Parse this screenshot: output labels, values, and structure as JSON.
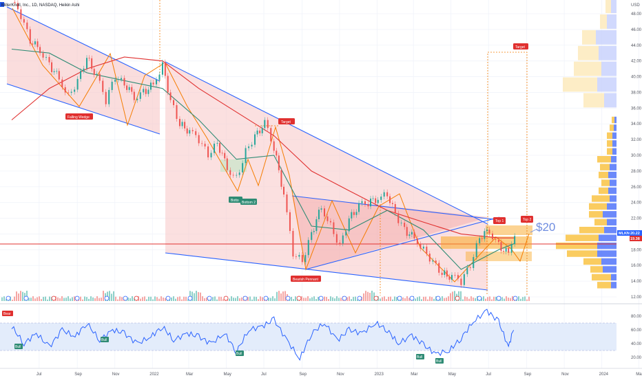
{
  "symbol_title": "MillerKnoll, Inc., 1D, NASDAQ, Heikin Ashi",
  "currency": "USD",
  "ticker_tag": "MLKN",
  "last_price": "20.22",
  "second_price": "19.38",
  "price_callout": "$20",
  "pattern_labels": {
    "falling_wedge": "Falling Wedge",
    "target1": "Target",
    "bottom1": "Botto",
    "bottom2": "Bottom 2",
    "bearish_pennant": "Bearish Pennant",
    "target2": "Target",
    "top1": "Top 1",
    "top2": "Top 2"
  },
  "rsi_marker_labels": {
    "bear": "Bear",
    "bull": "Bull"
  },
  "colors": {
    "candle_up": "#26a69a",
    "candle_down": "#ef5350",
    "ma_green": "#2e8b74",
    "ma_red": "#e0302f",
    "trend_blue": "#2962ff",
    "pattern_fill": "#f7c7c7",
    "orange": "#f57c00",
    "vp_blue": "#5b7cfa",
    "vp_yellow": "#f9c74f",
    "rsi_line": "#2962ff",
    "rsi_band": "#e3ecfb"
  },
  "chart_data": [
    {
      "type": "line",
      "title": "MillerKnoll, Inc., 1D, NASDAQ, Heikin Ashi",
      "ylabel": "USD",
      "ylim": [
        11,
        50
      ],
      "x_tick_labels": [
        "Jul",
        "Sep",
        "Nov",
        "2022",
        "Mar",
        "May",
        "Jul",
        "Sep",
        "Nov",
        "2023",
        "Mar",
        "May",
        "Jul",
        "Sep",
        "Nov",
        "2024",
        "Mar"
      ],
      "y_tick_labels": [
        "12.00",
        "14.00",
        "16.00",
        "18.00",
        "20.00",
        "22.00",
        "24.00",
        "26.00",
        "28.00",
        "30.00",
        "32.00",
        "34.00",
        "36.00",
        "38.00",
        "40.00",
        "42.00",
        "44.00",
        "46.00",
        "48.00"
      ],
      "grid": true,
      "series": [
        {
          "name": "Heikin Ashi close",
          "x": [
            "2021-06-20",
            "2021-07-05",
            "2021-07-20",
            "2021-08-05",
            "2021-08-20",
            "2021-09-05",
            "2021-09-20",
            "2021-10-05",
            "2021-10-20",
            "2021-11-05",
            "2021-11-20",
            "2021-12-05",
            "2021-12-20",
            "2022-01-05",
            "2022-01-20",
            "2022-02-05",
            "2022-02-20",
            "2022-03-05",
            "2022-03-20",
            "2022-04-05",
            "2022-04-20",
            "2022-05-05",
            "2022-05-20",
            "2022-06-05",
            "2022-06-20",
            "2022-07-05",
            "2022-07-20",
            "2022-08-05",
            "2022-08-20",
            "2022-09-05",
            "2022-09-20",
            "2022-10-05",
            "2022-10-20",
            "2022-11-05",
            "2022-11-20",
            "2022-12-05",
            "2022-12-20",
            "2023-01-05",
            "2023-01-20",
            "2023-02-05",
            "2023-02-20",
            "2023-03-05",
            "2023-03-20",
            "2023-04-05",
            "2023-04-20",
            "2023-05-05",
            "2023-05-20",
            "2023-06-05",
            "2023-06-20",
            "2023-07-05",
            "2023-07-20",
            "2023-08-05",
            "2023-08-20",
            "2023-09-05",
            "2023-09-15"
          ],
          "values": [
            49.5,
            47.8,
            44.5,
            43.5,
            41.5,
            39.8,
            37.5,
            39.5,
            42.5,
            40.0,
            37.0,
            40.0,
            39.0,
            37.5,
            38.0,
            39.0,
            41.5,
            37.0,
            34.0,
            33.0,
            32.0,
            30.0,
            31.5,
            28.5,
            27.0,
            30.5,
            32.5,
            34.0,
            31.0,
            25.0,
            17.5,
            16.5,
            20.0,
            23.5,
            21.0,
            18.5,
            22.0,
            23.5,
            24.0,
            24.5,
            25.0,
            22.5,
            20.5,
            19.5,
            18.0,
            16.5,
            15.0,
            14.5,
            14.0,
            16.0,
            19.5,
            20.5,
            18.5,
            17.5,
            20.2
          ]
        },
        {
          "name": "Moving average (green)",
          "x": [
            "2021-06-20",
            "2021-08-20",
            "2021-10-20",
            "2021-12-20",
            "2022-02-20",
            "2022-04-20",
            "2022-06-20",
            "2022-08-20",
            "2022-10-20",
            "2022-12-20",
            "2023-02-20",
            "2023-04-20",
            "2023-06-20",
            "2023-08-20",
            "2023-09-15"
          ],
          "values": [
            43.5,
            43.0,
            40.5,
            39.5,
            38.5,
            34.5,
            29.5,
            30.0,
            21.0,
            20.5,
            23.0,
            20.5,
            15.5,
            18.0,
            18.8
          ]
        },
        {
          "name": "Moving average (red)",
          "x": [
            "2021-06-20",
            "2021-08-20",
            "2021-10-20",
            "2021-12-20",
            "2022-02-20",
            "2022-04-20",
            "2022-06-20",
            "2022-08-20",
            "2022-10-20",
            "2022-12-20",
            "2023-02-20",
            "2023-04-20",
            "2023-06-20",
            "2023-08-20",
            "2023-09-15"
          ],
          "values": [
            34.5,
            38.5,
            41.0,
            42.5,
            42.0,
            38.5,
            35.5,
            32.5,
            28.0,
            25.5,
            23.0,
            21.5,
            20.0,
            19.5,
            19.5
          ]
        }
      ]
    },
    {
      "type": "line",
      "title": "RSI",
      "ylim": [
        10,
        90
      ],
      "y_tick_labels": [
        "20.00",
        "40.00",
        "60.00",
        "80.00"
      ],
      "grid": true,
      "series": [
        {
          "name": "RSI",
          "x": [
            "2021-06-20",
            "2021-07-10",
            "2021-07-30",
            "2021-08-20",
            "2021-09-10",
            "2021-10-01",
            "2021-10-20",
            "2021-11-10",
            "2021-12-01",
            "2021-12-20",
            "2022-01-10",
            "2022-02-01",
            "2022-02-20",
            "2022-03-10",
            "2022-04-01",
            "2022-04-20",
            "2022-05-10",
            "2022-06-01",
            "2022-06-20",
            "2022-07-10",
            "2022-08-01",
            "2022-08-20",
            "2022-09-10",
            "2022-10-01",
            "2022-10-20",
            "2022-11-10",
            "2022-12-01",
            "2022-12-20",
            "2023-01-10",
            "2023-02-01",
            "2023-02-20",
            "2023-03-10",
            "2023-04-01",
            "2023-04-20",
            "2023-05-10",
            "2023-06-01",
            "2023-06-20",
            "2023-07-10",
            "2023-08-01",
            "2023-08-20",
            "2023-09-05",
            "2023-09-15"
          ],
          "values": [
            65,
            40,
            55,
            35,
            60,
            50,
            70,
            45,
            60,
            55,
            40,
            50,
            65,
            45,
            55,
            50,
            40,
            55,
            28,
            60,
            65,
            75,
            45,
            18,
            55,
            70,
            45,
            60,
            55,
            70,
            60,
            40,
            52,
            38,
            25,
            30,
            48,
            72,
            88,
            72,
            35,
            68
          ]
        }
      ]
    },
    {
      "type": "bar",
      "title": "Volume profile",
      "categories": [
        "13.0-14.0",
        "14.0-15.0",
        "15.0-16.0",
        "16.0-17.0",
        "17.0-18.0",
        "18.0-19.0",
        "19.0-20.0",
        "20.0-21.0",
        "21.0-22.0",
        "22.0-23.0",
        "23.0-24.0",
        "24.0-25.0",
        "25.0-26.0",
        "26.0-27.0",
        "27.0-28.0",
        "28.0-29.0",
        "29.0-30.0",
        "30.0-31.0",
        "31.0-32.0",
        "32.0-33.0",
        "33.0-34.0",
        "34.0-35.0"
      ],
      "series": [
        {
          "name": "Up volume",
          "values": [
            20,
            28,
            18,
            26,
            44,
            60,
            48,
            36,
            18,
            20,
            26,
            26,
            14,
            12,
            14,
            14,
            20,
            8,
            8,
            8,
            6,
            4
          ]
        },
        {
          "name": "Down volume",
          "values": [
            8,
            8,
            20,
            22,
            28,
            28,
            26,
            18,
            14,
            20,
            14,
            10,
            12,
            10,
            12,
            10,
            8,
            6,
            6,
            6,
            4,
            3
          ]
        }
      ]
    }
  ]
}
